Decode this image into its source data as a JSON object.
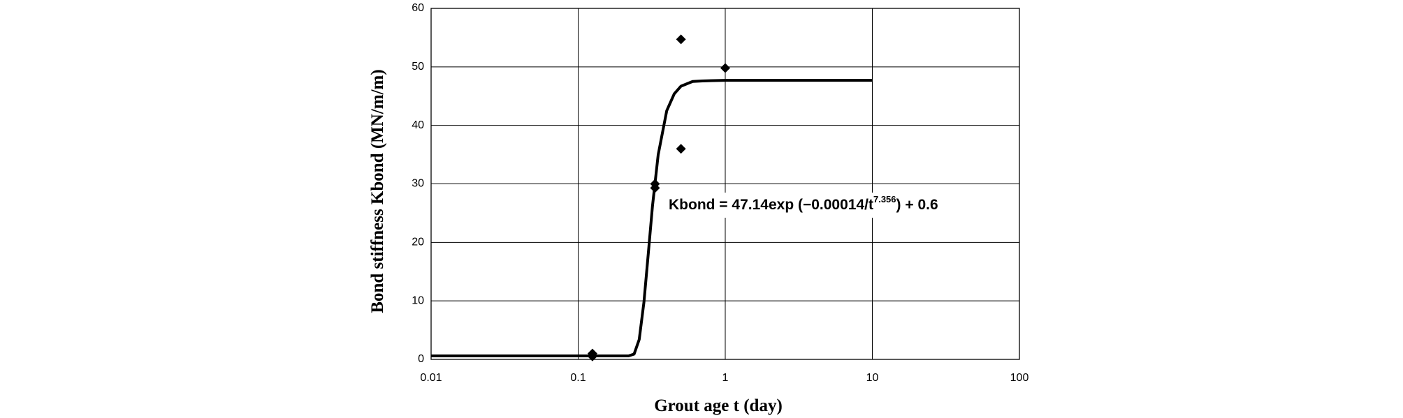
{
  "chart_data": {
    "type": "scatter",
    "x_label": "Grout age t (day)",
    "y_label": "Bond stiffness Kbond (MN/m/m)",
    "annotation": {
      "parts": [
        "Kbond = 47.14exp (−0.00014/t",
        "7.356",
        ") + 0.6"
      ]
    },
    "xscale": "log",
    "xlim": [
      0.01,
      100
    ],
    "xticks": [
      0.01,
      0.1,
      1,
      10,
      100
    ],
    "ylim": [
      0,
      60
    ],
    "yticks": [
      0,
      10,
      20,
      30,
      40,
      50,
      60
    ],
    "grid": true,
    "series": [
      {
        "mode": "markers",
        "marker": "diamond",
        "color": "#000000",
        "x": [
          0.125,
          0.125,
          0.333,
          0.333,
          0.5,
          0.5,
          1
        ],
        "values": [
          0.5,
          1,
          30,
          29.3,
          54.7,
          36,
          49.8
        ]
      },
      {
        "mode": "line",
        "color": "#000000",
        "x": [
          0.01,
          0.1,
          0.2,
          0.22,
          0.24,
          0.26,
          0.28,
          0.3,
          0.32,
          0.35,
          0.4,
          0.45,
          0.5,
          0.6,
          0.7,
          1,
          2,
          5,
          10
        ],
        "values": [
          0.6,
          0.6,
          0.6,
          0.6,
          0.9,
          3.4,
          9.8,
          18.2,
          26.2,
          35.0,
          42.5,
          45.4,
          46.7,
          47.5,
          47.6,
          47.7,
          47.7,
          47.7,
          47.7
        ]
      }
    ]
  }
}
